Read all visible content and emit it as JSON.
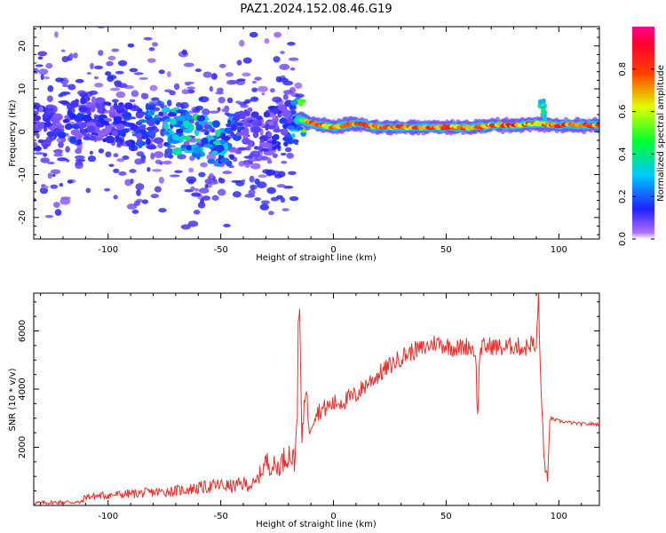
{
  "title": "PAZ1.2024.152.08.46.G19",
  "chart_data": [
    {
      "type": "heatmap",
      "xlabel": "Height of straight line (km)",
      "ylabel": "Frequency (Hz)",
      "xlim": [
        -133,
        118
      ],
      "ylim": [
        -25,
        24.5
      ],
      "xticks": [
        -100,
        -50,
        0,
        50,
        100
      ],
      "yticks": [
        -20,
        -10,
        0,
        10,
        20
      ],
      "colorbar": {
        "label": "Normalized spectral amplitude",
        "ticks": [
          0.0,
          0.2,
          0.4,
          0.6,
          0.8
        ],
        "range": [
          0,
          1
        ],
        "colormap": "gist_rainbow (purple → blue → cyan → green → yellow → red → magenta)"
      },
      "ridge": {
        "x": [
          -133,
          -120,
          -110,
          -100,
          -90,
          -80,
          -70,
          -60,
          -50,
          -40,
          -30,
          -20,
          -15,
          -10,
          0,
          10,
          20,
          30,
          40,
          50,
          60,
          70,
          80,
          90,
          100,
          110,
          118
        ],
        "freq": [
          1,
          2,
          3,
          3,
          1,
          3,
          0,
          -1,
          -3,
          1,
          0,
          2,
          3,
          2,
          1,
          2,
          1,
          1,
          1,
          1,
          1,
          1.5,
          1.5,
          2,
          1.5,
          1.5,
          1.5
        ],
        "amplitude": [
          0.1,
          0.15,
          0.12,
          0.12,
          0.15,
          0.2,
          0.3,
          0.35,
          0.3,
          0.1,
          0.1,
          0.15,
          0.4,
          0.8,
          0.7,
          0.85,
          0.8,
          0.8,
          0.8,
          0.85,
          0.75,
          0.8,
          0.85,
          0.7,
          0.85,
          0.85,
          0.8
        ]
      }
    },
    {
      "type": "line",
      "xlabel": "Height of straight line (km)",
      "ylabel": "SNR (10 * v/v)",
      "xlim": [
        -133,
        118
      ],
      "ylim": [
        0,
        7300
      ],
      "xticks": [
        -100,
        -50,
        0,
        50,
        100
      ],
      "yticks": [
        2000,
        4000,
        6000
      ],
      "color": "#e8302a",
      "series": [
        {
          "x": [
            -133,
            -125,
            -118,
            -112,
            -110,
            -100,
            -90,
            -80,
            -70,
            -60,
            -50,
            -45,
            -40,
            -35,
            -30,
            -25,
            -20,
            -17,
            -15,
            -14,
            -13,
            -12,
            -11,
            -10,
            -8,
            -5,
            0,
            5,
            10,
            15,
            20,
            25,
            30,
            35,
            40,
            45,
            50,
            55,
            60,
            63,
            64,
            65,
            70,
            75,
            80,
            85,
            88,
            90,
            91,
            92,
            93,
            94,
            95,
            96,
            100,
            105,
            110,
            118
          ],
          "y": [
            80,
            100,
            120,
            100,
            300,
            350,
            400,
            450,
            500,
            600,
            700,
            650,
            750,
            700,
            1500,
            1300,
            1800,
            1500,
            6700,
            2000,
            3500,
            4200,
            2500,
            2800,
            3200,
            3300,
            3500,
            3600,
            3800,
            4200,
            4500,
            4800,
            5100,
            5300,
            5400,
            5600,
            5500,
            5400,
            5500,
            5300,
            3000,
            5400,
            5500,
            5400,
            5500,
            5400,
            5600,
            5300,
            7300,
            4000,
            2500,
            1000,
            800,
            3000,
            2900,
            2850,
            2800,
            2800
          ]
        }
      ]
    }
  ]
}
